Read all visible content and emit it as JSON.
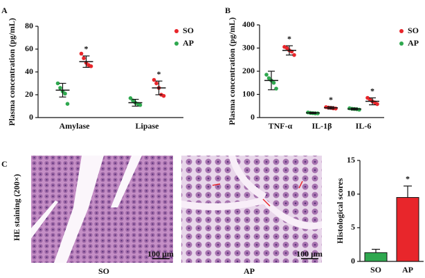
{
  "chart_data": [
    {
      "type": "dot",
      "panel_label": "A",
      "ylabel": "Plasma concentration (pg/mL)",
      "categories": [
        "Amylase",
        "Lipase"
      ],
      "ylim": [
        0,
        80
      ],
      "yticks": [
        0,
        20,
        40,
        60,
        80
      ],
      "legend": "upper right",
      "series": [
        {
          "name": "SO",
          "color": "#e8262b",
          "values": [
            49,
            26
          ],
          "errors": [
            5,
            6
          ],
          "points": [
            [
              56,
              52,
              48,
              46,
              45
            ],
            [
              33,
              30,
              26,
              20,
              19
            ]
          ],
          "significance": [
            "*",
            "*"
          ]
        },
        {
          "name": "AP",
          "color": "#2fa84f",
          "values": [
            24,
            13
          ],
          "errors": [
            6,
            3
          ],
          "points": [
            [
              30,
              26,
              23,
              21,
              12
            ],
            [
              17,
              15,
              13,
              12,
              11
            ]
          ]
        }
      ]
    },
    {
      "type": "dot",
      "panel_label": "B",
      "ylabel": "Plasma concentration (pg/mL)",
      "categories": [
        "TNF-α",
        "IL-1β",
        "IL-6"
      ],
      "ylim": [
        0,
        400
      ],
      "yticks": [
        0,
        100,
        200,
        300,
        400
      ],
      "legend": "upper right",
      "series": [
        {
          "name": "SO",
          "color": "#e8262b",
          "values": [
            290,
            42,
            70
          ],
          "errors": [
            20,
            5,
            15
          ],
          "points": [
            [
              305,
              300,
              290,
              285,
              270
            ],
            [
              45,
              43,
              42,
              40,
              39
            ],
            [
              85,
              78,
              70,
              65,
              58
            ]
          ],
          "significance": [
            "*",
            "*",
            "*"
          ]
        },
        {
          "name": "AP",
          "color": "#2fa84f",
          "values": [
            160,
            20,
            37
          ],
          "errors": [
            40,
            3,
            4
          ],
          "points": [
            [
              185,
              170,
              160,
              150,
              125
            ],
            [
              22,
              20,
              19,
              18,
              18
            ],
            [
              40,
              38,
              37,
              36,
              34
            ]
          ]
        }
      ]
    },
    {
      "type": "bar",
      "ylabel": "Histological scores",
      "categories": [
        "SO",
        "AP"
      ],
      "values": [
        1.3,
        9.5
      ],
      "errors": [
        0.5,
        1.7
      ],
      "colors": [
        "#2fa84f",
        "#e8262b"
      ],
      "significance": [
        null,
        "*"
      ],
      "ylim": [
        0,
        15
      ],
      "yticks": [
        0,
        5,
        10,
        15
      ]
    }
  ],
  "images": {
    "panel_label": "C",
    "ylabel": "HE staining (200×)",
    "items": [
      {
        "label": "SO",
        "scale_bar": "100 μm"
      },
      {
        "label": "AP",
        "scale_bar": "100 μm"
      }
    ]
  }
}
